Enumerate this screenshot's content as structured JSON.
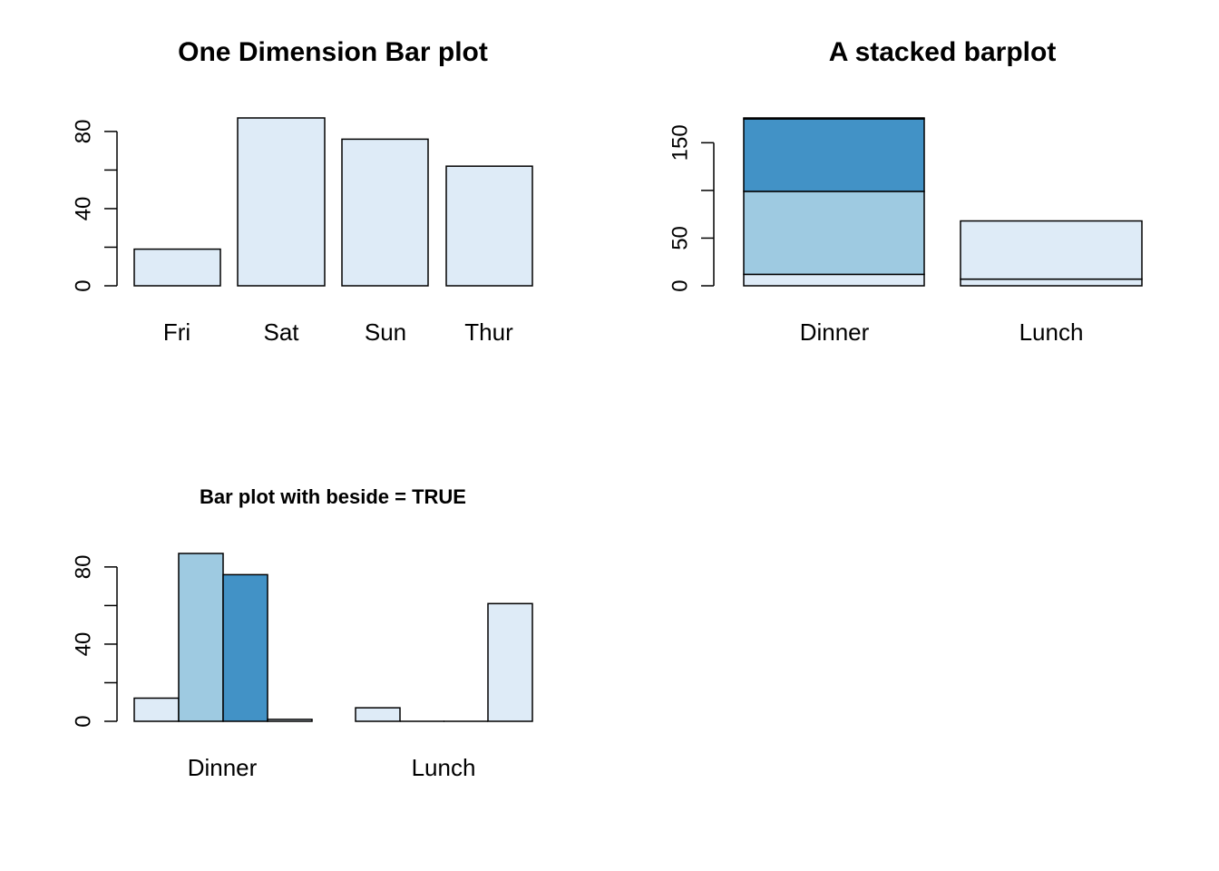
{
  "colors": {
    "light": "#DEEBF7",
    "mid": "#9ECAE1",
    "dark": "#4292C6",
    "stroke": "#000000",
    "background": "#FFFFFF"
  },
  "chart_data": [
    {
      "type": "bar",
      "title": "One Dimension Bar plot",
      "categories": [
        "Fri",
        "Sat",
        "Sun",
        "Thur"
      ],
      "values": [
        19,
        87,
        76,
        62
      ],
      "ylim": [
        0,
        87
      ],
      "yticks": [
        0,
        20,
        40,
        60,
        80
      ],
      "ytick_labels": [
        "0",
        "",
        "40",
        "",
        "80"
      ],
      "xlabel": "",
      "ylabel": "",
      "grid": false
    },
    {
      "type": "bar",
      "stacked": true,
      "title": "A stacked barplot",
      "categories": [
        "Dinner",
        "Lunch"
      ],
      "series": [
        {
          "values": [
            12,
            7
          ],
          "color": "light"
        },
        {
          "values": [
            87,
            0
          ],
          "color": "mid"
        },
        {
          "values": [
            76,
            0
          ],
          "color": "dark"
        },
        {
          "values": [
            1,
            61
          ],
          "color": "light"
        }
      ],
      "ylim": [
        0,
        176
      ],
      "yticks": [
        0,
        50,
        100,
        150
      ],
      "ytick_labels": [
        "0",
        "50",
        "",
        "150"
      ],
      "xlabel": "",
      "ylabel": "",
      "grid": false
    },
    {
      "type": "bar",
      "grouped": true,
      "title": "Bar plot with beside = TRUE",
      "categories": [
        "Dinner",
        "Lunch"
      ],
      "series": [
        {
          "values": [
            12,
            7
          ],
          "color": "light"
        },
        {
          "values": [
            87,
            0
          ],
          "color": "mid"
        },
        {
          "values": [
            76,
            0
          ],
          "color": "dark"
        },
        {
          "values": [
            1,
            61
          ],
          "color": "light"
        }
      ],
      "ylim": [
        0,
        87
      ],
      "yticks": [
        0,
        20,
        40,
        60,
        80
      ],
      "ytick_labels": [
        "0",
        "",
        "40",
        "",
        "80"
      ],
      "xlabel": "",
      "ylabel": "",
      "grid": false
    }
  ]
}
